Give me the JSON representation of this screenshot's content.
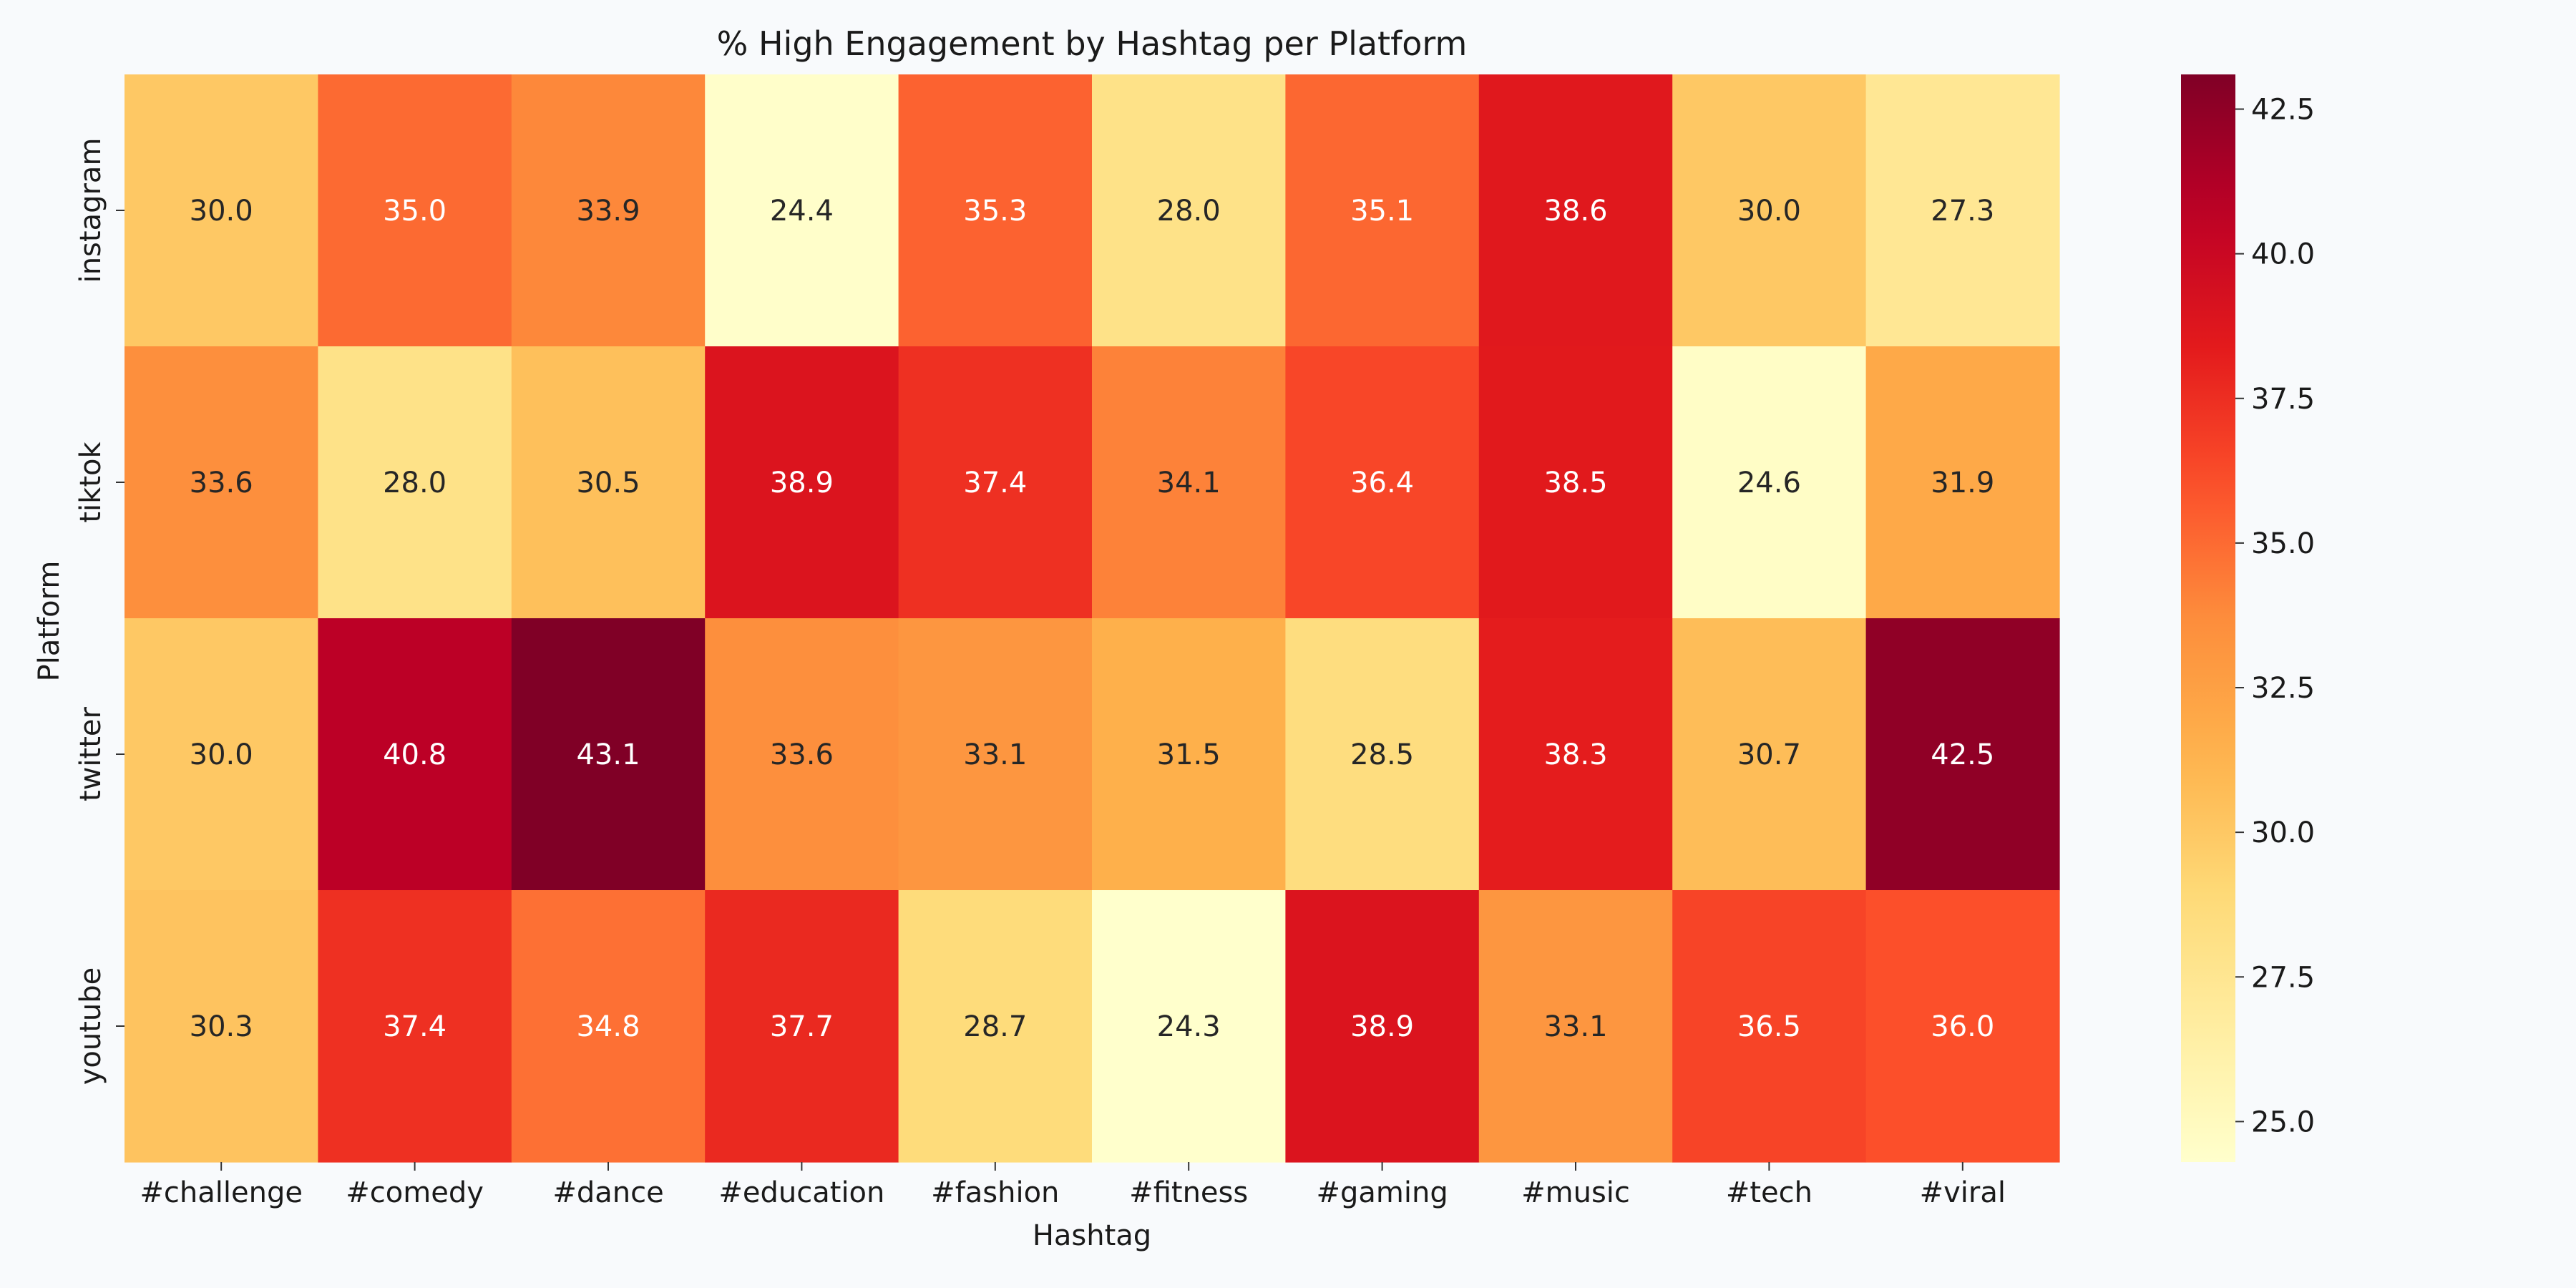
{
  "chart_data": {
    "type": "heatmap",
    "title": "% High Engagement by Hashtag per Platform",
    "xlabel": "Hashtag",
    "ylabel": "Platform",
    "x_categories": [
      "#challenge",
      "#comedy",
      "#dance",
      "#education",
      "#fashion",
      "#fitness",
      "#gaming",
      "#music",
      "#tech",
      "#viral"
    ],
    "y_categories": [
      "instagram",
      "tiktok",
      "twitter",
      "youtube"
    ],
    "values": [
      [
        30.0,
        35.0,
        33.9,
        24.4,
        35.3,
        28.0,
        35.1,
        38.6,
        30.0,
        27.3
      ],
      [
        33.6,
        28.0,
        30.5,
        38.9,
        37.4,
        34.1,
        36.4,
        38.5,
        24.6,
        31.9
      ],
      [
        30.0,
        40.8,
        43.1,
        33.6,
        33.1,
        31.5,
        28.5,
        38.3,
        30.7,
        42.5
      ],
      [
        30.3,
        37.4,
        34.8,
        37.7,
        28.7,
        24.3,
        38.9,
        33.1,
        36.5,
        36.0
      ]
    ],
    "colormap": "YlOrRd",
    "color_range": [
      24.3,
      43.1
    ],
    "colorbar_ticks": [
      "25.0",
      "27.5",
      "30.0",
      "32.5",
      "35.0",
      "37.5",
      "40.0",
      "42.5"
    ],
    "annotation_decimals": 1,
    "grid": false
  }
}
